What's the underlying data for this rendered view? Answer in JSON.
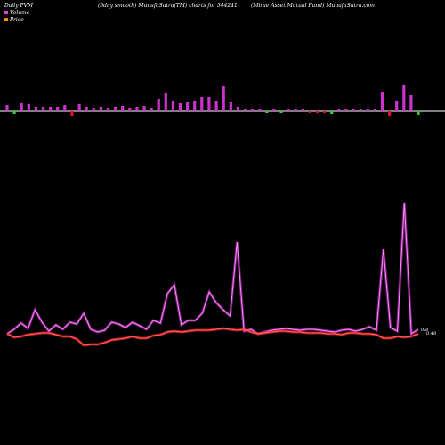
{
  "header": {
    "left": "Daily PVM",
    "center": "(5day smooth) MunafaSutra(TM) charts for 544241",
    "right": "(Mirae   Asset Mutual Fund) MunafaSutra.com"
  },
  "legend": [
    {
      "label": "Volume",
      "color": "#e040e0"
    },
    {
      "label": "Price",
      "color": "#ff8c00"
    }
  ],
  "colors": {
    "background": "#000000",
    "bar_up": "#cc33cc",
    "bar_down": "#dd1133",
    "bar_neutral": "#33cc33",
    "volume_line": "#cc33cc",
    "price_line": "#ee1111",
    "baseline": "#ffffff"
  },
  "chart_data": {
    "type": "bar",
    "volume_bars": [
      {
        "value": 7,
        "color": "magenta"
      },
      {
        "value": -3,
        "color": "green"
      },
      {
        "value": 9,
        "color": "magenta"
      },
      {
        "value": 8,
        "color": "magenta"
      },
      {
        "value": 5,
        "color": "magenta"
      },
      {
        "value": 5,
        "color": "magenta"
      },
      {
        "value": 5,
        "color": "magenta"
      },
      {
        "value": 5,
        "color": "magenta"
      },
      {
        "value": 7,
        "color": "magenta"
      },
      {
        "value": -5,
        "color": "red"
      },
      {
        "value": 8,
        "color": "magenta"
      },
      {
        "value": 5,
        "color": "magenta"
      },
      {
        "value": 4,
        "color": "magenta"
      },
      {
        "value": 5,
        "color": "magenta"
      },
      {
        "value": 4,
        "color": "magenta"
      },
      {
        "value": 5,
        "color": "magenta"
      },
      {
        "value": 6,
        "color": "magenta"
      },
      {
        "value": 4,
        "color": "magenta"
      },
      {
        "value": 5,
        "color": "magenta"
      },
      {
        "value": 6,
        "color": "magenta"
      },
      {
        "value": 4,
        "color": "magenta"
      },
      {
        "value": 14,
        "color": "magenta"
      },
      {
        "value": 20,
        "color": "magenta"
      },
      {
        "value": 12,
        "color": "magenta"
      },
      {
        "value": 9,
        "color": "magenta"
      },
      {
        "value": 10,
        "color": "magenta"
      },
      {
        "value": 12,
        "color": "magenta"
      },
      {
        "value": 16,
        "color": "magenta"
      },
      {
        "value": 16,
        "color": "magenta"
      },
      {
        "value": 11,
        "color": "magenta"
      },
      {
        "value": 28,
        "color": "magenta"
      },
      {
        "value": 10,
        "color": "magenta"
      },
      {
        "value": 5,
        "color": "magenta"
      },
      {
        "value": 3,
        "color": "magenta"
      },
      {
        "value": 2,
        "color": "magenta"
      },
      {
        "value": 2,
        "color": "magenta"
      },
      {
        "value": -2,
        "color": "green"
      },
      {
        "value": 2,
        "color": "magenta"
      },
      {
        "value": -2,
        "color": "green"
      },
      {
        "value": 2,
        "color": "magenta"
      },
      {
        "value": 2,
        "color": "magenta"
      },
      {
        "value": 2,
        "color": "magenta"
      },
      {
        "value": -2,
        "color": "red"
      },
      {
        "value": -2,
        "color": "red"
      },
      {
        "value": -2,
        "color": "red"
      },
      {
        "value": -3,
        "color": "green"
      },
      {
        "value": 2,
        "color": "magenta"
      },
      {
        "value": 2,
        "color": "magenta"
      },
      {
        "value": 3,
        "color": "magenta"
      },
      {
        "value": 3,
        "color": "magenta"
      },
      {
        "value": 3,
        "color": "magenta"
      },
      {
        "value": 3,
        "color": "magenta"
      },
      {
        "value": 22,
        "color": "magenta"
      },
      {
        "value": -5,
        "color": "red"
      },
      {
        "value": 12,
        "color": "magenta"
      },
      {
        "value": 30,
        "color": "magenta"
      },
      {
        "value": 18,
        "color": "magenta"
      },
      {
        "value": -4,
        "color": "green"
      }
    ],
    "volume_line": [
      375,
      370,
      363,
      369,
      348,
      362,
      372,
      365,
      370,
      362,
      364,
      352,
      370,
      373,
      371,
      362,
      364,
      368,
      362,
      366,
      370,
      360,
      363,
      330,
      320,
      365,
      360,
      360,
      352,
      328,
      340,
      348,
      355,
      272,
      372,
      370,
      375,
      373,
      371,
      370,
      369,
      370,
      371,
      370,
      370,
      371,
      372,
      373,
      371,
      370,
      372,
      370,
      367,
      371,
      280,
      368,
      372,
      228,
      375,
      370
    ],
    "price_line": [
      375,
      379,
      378,
      376,
      375,
      374,
      374,
      376,
      378,
      378,
      381,
      388,
      387,
      387,
      385,
      382,
      381,
      380,
      378,
      380,
      380,
      377,
      376,
      373,
      372,
      373,
      372,
      371,
      371,
      371,
      370,
      369,
      370,
      371,
      370,
      373,
      375,
      374,
      373,
      372,
      372,
      373,
      373,
      374,
      374,
      374,
      375,
      375,
      376,
      374,
      374,
      375,
      375,
      376,
      380,
      380,
      378,
      379,
      378,
      375
    ],
    "end_labels": [
      "0M",
      "0.48"
    ]
  }
}
